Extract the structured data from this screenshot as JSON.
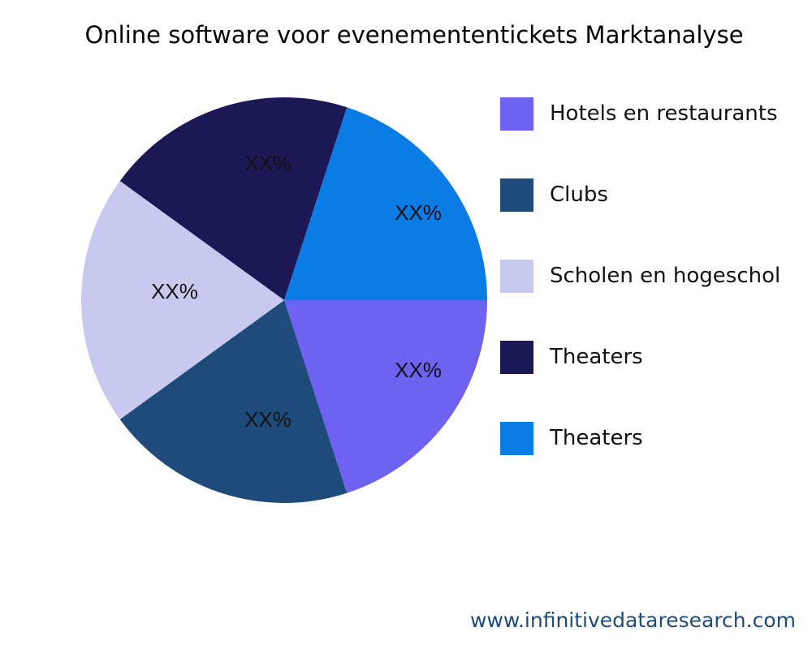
{
  "chart_data": {
    "type": "pie",
    "title": "Online software voor evenemententickets Marktanalyse",
    "categories": [
      "Hotels en restaurants",
      "Clubs",
      "Scholen en hogeschol",
      "Theaters",
      "Theaters"
    ],
    "values": [
      20,
      20,
      20,
      20,
      20
    ],
    "data_labels": [
      "XX%",
      "XX%",
      "XX%",
      "XX%",
      "XX%"
    ],
    "colors": [
      "#6F61F2",
      "#1F4B7A",
      "#C9C9F0",
      "#1C1855",
      "#0B7BE5"
    ],
    "legend_position": "right"
  },
  "footer": "www.infinitivedataresearch.com"
}
